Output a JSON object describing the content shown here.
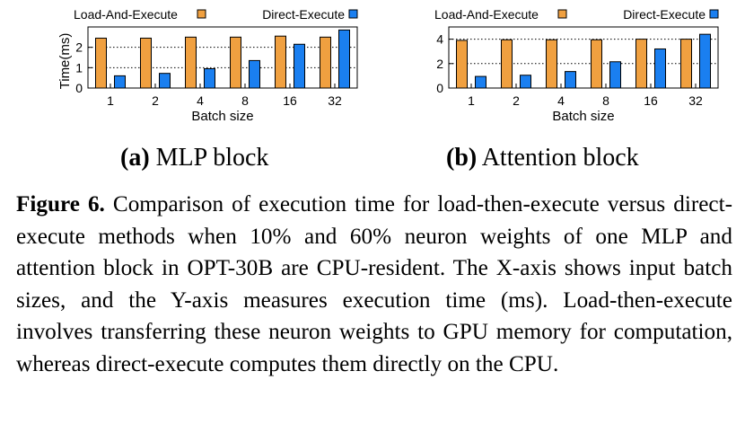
{
  "figure": {
    "label": "Figure 6.",
    "caption_text": "Comparison of execution time for load-then-execute versus direct-execute methods when 10% and 60% neuron weights of one MLP and attention block in OPT-30B are CPU-resident. The X-axis shows input batch sizes, and the Y-axis measures execution time (ms). Load-then-execute involves transferring these neuron weights to GPU memory for computation, whereas direct-execute computes them directly on the CPU."
  },
  "subcaptions": [
    {
      "label": "(a)",
      "text": "MLP block"
    },
    {
      "label": "(b)",
      "text": "Attention block"
    }
  ],
  "colors": {
    "load_and_execute": "#F0A040",
    "direct_execute": "#1A7FF0"
  },
  "chart_data": [
    {
      "type": "bar",
      "categories": [
        "1",
        "2",
        "4",
        "8",
        "16",
        "32"
      ],
      "series": [
        {
          "name": "Load-And-Execute",
          "values": [
            2.45,
            2.45,
            2.5,
            2.5,
            2.55,
            2.5
          ]
        },
        {
          "name": "Direct-Execute",
          "values": [
            0.6,
            0.72,
            0.95,
            1.35,
            2.15,
            2.85
          ]
        }
      ],
      "xlabel": "Batch size",
      "ylabel": "Time(ms)",
      "ylim": [
        0,
        3
      ],
      "yticks": [
        0,
        1,
        2
      ],
      "grid": true,
      "legend": "top"
    },
    {
      "type": "bar",
      "categories": [
        "1",
        "2",
        "4",
        "8",
        "16",
        "32"
      ],
      "series": [
        {
          "name": "Load-And-Execute",
          "values": [
            3.9,
            3.95,
            3.95,
            3.95,
            4.0,
            4.0
          ]
        },
        {
          "name": "Direct-Execute",
          "values": [
            0.95,
            1.05,
            1.35,
            2.15,
            3.2,
            4.4
          ]
        }
      ],
      "xlabel": "Batch size",
      "ylabel": "",
      "ylim": [
        0,
        5
      ],
      "yticks": [
        0,
        2,
        4
      ],
      "grid": true,
      "legend": "top"
    }
  ]
}
